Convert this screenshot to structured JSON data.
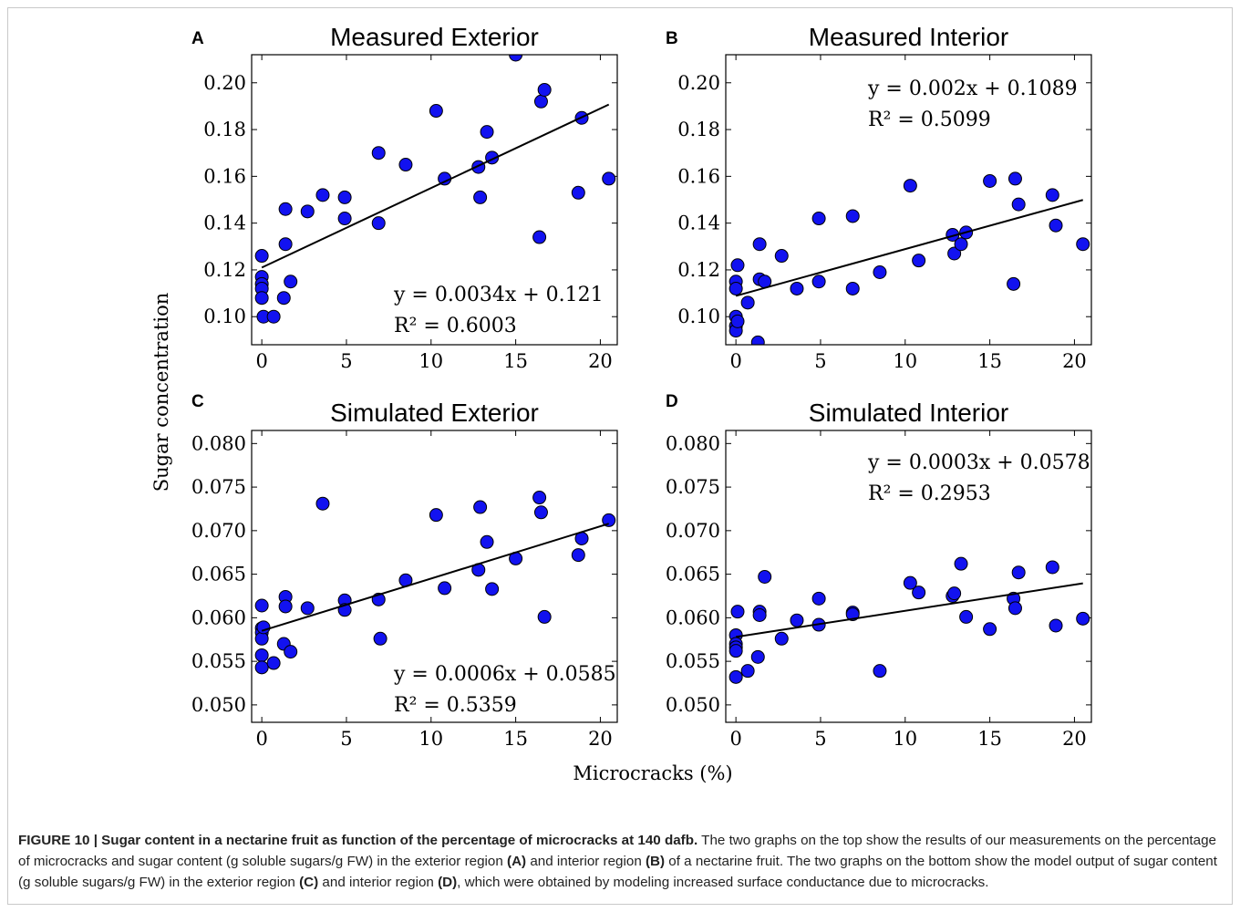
{
  "figure": {
    "ylabel": "Sugar concentration",
    "xlabel": "Microcracks (%)"
  },
  "caption": {
    "lead": "FIGURE 10 | Sugar content in a nectarine fruit as function of the percentage of microcracks at 140 dafb.",
    "t1": " The two graphs on the top show the results of our measurements on the percentage of microcracks and sugar content (g soluble sugars/g FW) in the exterior region ",
    "a": "(A)",
    "t2": " and interior region ",
    "b": "(B)",
    "t3": " of a nectarine fruit. The two graphs on the bottom show the model output of sugar content (g soluble sugars/g FW) in the exterior region ",
    "c": "(C)",
    "t4": " and interior region ",
    "d": "(D)",
    "t5": ", which were obtained by modeling increased surface conductance due to microcracks."
  },
  "colors": {
    "point_fill": "#1212f0",
    "point_stroke": "#000000",
    "line": "#000000"
  },
  "chart_data": [
    {
      "type": "scatter",
      "letter": "A",
      "title": "Measured Exterior",
      "xlim": [
        -0.6,
        21
      ],
      "ylim": [
        0.088,
        0.212
      ],
      "xticks": [
        0,
        5,
        10,
        15,
        20
      ],
      "yticks": [
        0.1,
        0.12,
        0.14,
        0.16,
        0.18,
        0.2
      ],
      "ytick_labels": [
        "0.10",
        "0.12",
        "0.14",
        "0.16",
        "0.18",
        "0.20"
      ],
      "equation": "y = 0.0034x + 0.121",
      "r2": "R² = 0.6003",
      "fit": {
        "slope": 0.0034,
        "intercept": 0.121,
        "x_range": [
          0,
          20.5
        ]
      },
      "points": [
        [
          0,
          0.126
        ],
        [
          0,
          0.117
        ],
        [
          0,
          0.114
        ],
        [
          0,
          0.112
        ],
        [
          0,
          0.108
        ],
        [
          0.1,
          0.1
        ],
        [
          0.7,
          0.1
        ],
        [
          1.3,
          0.108
        ],
        [
          1.4,
          0.146
        ],
        [
          1.4,
          0.131
        ],
        [
          1.7,
          0.115
        ],
        [
          2.7,
          0.145
        ],
        [
          3.6,
          0.152
        ],
        [
          4.9,
          0.151
        ],
        [
          4.9,
          0.142
        ],
        [
          6.9,
          0.17
        ],
        [
          6.9,
          0.14
        ],
        [
          8.5,
          0.165
        ],
        [
          10.3,
          0.188
        ],
        [
          10.8,
          0.159
        ],
        [
          12.8,
          0.164
        ],
        [
          12.9,
          0.151
        ],
        [
          13.3,
          0.179
        ],
        [
          13.6,
          0.168
        ],
        [
          15.0,
          0.212
        ],
        [
          16.4,
          0.134
        ],
        [
          16.5,
          0.192
        ],
        [
          16.7,
          0.197
        ],
        [
          18.7,
          0.153
        ],
        [
          18.9,
          0.185
        ],
        [
          20.5,
          0.159
        ]
      ]
    },
    {
      "type": "scatter",
      "letter": "B",
      "title": "Measured Interior",
      "xlim": [
        -0.6,
        21
      ],
      "ylim": [
        0.088,
        0.212
      ],
      "xticks": [
        0,
        5,
        10,
        15,
        20
      ],
      "yticks": [
        0.1,
        0.12,
        0.14,
        0.16,
        0.18,
        0.2
      ],
      "ytick_labels": [
        "0.10",
        "0.12",
        "0.14",
        "0.16",
        "0.18",
        "0.20"
      ],
      "equation": "y = 0.002x + 0.1089",
      "r2": "R² = 0.5099",
      "fit": {
        "slope": 0.002,
        "intercept": 0.1089,
        "x_range": [
          0,
          20.5
        ]
      },
      "points": [
        [
          0,
          0.115
        ],
        [
          0,
          0.112
        ],
        [
          0,
          0.1
        ],
        [
          0,
          0.096
        ],
        [
          0,
          0.094
        ],
        [
          0.1,
          0.122
        ],
        [
          0.1,
          0.098
        ],
        [
          0.7,
          0.106
        ],
        [
          1.3,
          0.089
        ],
        [
          1.4,
          0.131
        ],
        [
          1.4,
          0.116
        ],
        [
          1.7,
          0.115
        ],
        [
          2.7,
          0.126
        ],
        [
          3.6,
          0.112
        ],
        [
          4.9,
          0.115
        ],
        [
          4.9,
          0.142
        ],
        [
          6.9,
          0.143
        ],
        [
          6.9,
          0.112
        ],
        [
          8.5,
          0.119
        ],
        [
          10.3,
          0.156
        ],
        [
          10.8,
          0.124
        ],
        [
          12.8,
          0.135
        ],
        [
          12.9,
          0.127
        ],
        [
          13.3,
          0.131
        ],
        [
          13.6,
          0.136
        ],
        [
          15.0,
          0.158
        ],
        [
          16.4,
          0.114
        ],
        [
          16.5,
          0.159
        ],
        [
          16.7,
          0.148
        ],
        [
          18.7,
          0.152
        ],
        [
          18.9,
          0.139
        ],
        [
          20.5,
          0.131
        ]
      ]
    },
    {
      "type": "scatter",
      "letter": "C",
      "title": "Simulated Exterior",
      "xlim": [
        -0.6,
        21
      ],
      "ylim": [
        0.048,
        0.0815
      ],
      "xticks": [
        0,
        5,
        10,
        15,
        20
      ],
      "yticks": [
        0.05,
        0.055,
        0.06,
        0.065,
        0.07,
        0.075,
        0.08
      ],
      "ytick_labels": [
        "0.050",
        "0.055",
        "0.060",
        "0.065",
        "0.070",
        "0.075",
        "0.080"
      ],
      "equation": "y = 0.0006x + 0.0585",
      "r2": "R² = 0.5359",
      "fit": {
        "slope": 0.0006,
        "intercept": 0.0585,
        "x_range": [
          0,
          20.5
        ]
      },
      "points": [
        [
          0,
          0.0614
        ],
        [
          0,
          0.0588
        ],
        [
          0,
          0.0583
        ],
        [
          0,
          0.0576
        ],
        [
          0,
          0.0557
        ],
        [
          0,
          0.0543
        ],
        [
          0.1,
          0.0589
        ],
        [
          0.7,
          0.0548
        ],
        [
          1.3,
          0.057
        ],
        [
          1.4,
          0.0624
        ],
        [
          1.4,
          0.0613
        ],
        [
          1.7,
          0.0561
        ],
        [
          2.7,
          0.0611
        ],
        [
          3.6,
          0.0731
        ],
        [
          4.9,
          0.062
        ],
        [
          4.9,
          0.0609
        ],
        [
          6.9,
          0.0621
        ],
        [
          7.0,
          0.0576
        ],
        [
          8.5,
          0.0643
        ],
        [
          10.3,
          0.0718
        ],
        [
          10.8,
          0.0634
        ],
        [
          12.8,
          0.0655
        ],
        [
          12.9,
          0.0727
        ],
        [
          13.3,
          0.0687
        ],
        [
          13.6,
          0.0633
        ],
        [
          15.0,
          0.0668
        ],
        [
          16.4,
          0.0738
        ],
        [
          16.5,
          0.0721
        ],
        [
          16.7,
          0.0601
        ],
        [
          18.7,
          0.0672
        ],
        [
          18.9,
          0.0691
        ],
        [
          20.5,
          0.0712
        ]
      ]
    },
    {
      "type": "scatter",
      "letter": "D",
      "title": "Simulated Interior",
      "xlim": [
        -0.6,
        21
      ],
      "ylim": [
        0.048,
        0.0815
      ],
      "xticks": [
        0,
        5,
        10,
        15,
        20
      ],
      "yticks": [
        0.05,
        0.055,
        0.06,
        0.065,
        0.07,
        0.075,
        0.08
      ],
      "ytick_labels": [
        "0.050",
        "0.055",
        "0.060",
        "0.065",
        "0.070",
        "0.075",
        "0.080"
      ],
      "equation": "y = 0.0003x + 0.0578",
      "r2": "R² = 0.2953",
      "fit": {
        "slope": 0.0003,
        "intercept": 0.0578,
        "x_range": [
          0,
          20.5
        ]
      },
      "points": [
        [
          0,
          0.058
        ],
        [
          0,
          0.057
        ],
        [
          0,
          0.0566
        ],
        [
          0,
          0.0562
        ],
        [
          0,
          0.0532
        ],
        [
          0.1,
          0.0607
        ],
        [
          0.7,
          0.0539
        ],
        [
          1.3,
          0.0555
        ],
        [
          1.4,
          0.0607
        ],
        [
          1.4,
          0.0603
        ],
        [
          1.7,
          0.0647
        ],
        [
          2.7,
          0.0576
        ],
        [
          3.6,
          0.0597
        ],
        [
          4.9,
          0.0622
        ],
        [
          4.9,
          0.0592
        ],
        [
          6.9,
          0.0606
        ],
        [
          6.9,
          0.0604
        ],
        [
          8.5,
          0.0539
        ],
        [
          10.3,
          0.064
        ],
        [
          10.8,
          0.0629
        ],
        [
          12.8,
          0.0625
        ],
        [
          12.9,
          0.0628
        ],
        [
          13.3,
          0.0662
        ],
        [
          13.6,
          0.0601
        ],
        [
          15.0,
          0.0587
        ],
        [
          16.4,
          0.0622
        ],
        [
          16.5,
          0.0611
        ],
        [
          16.7,
          0.0652
        ],
        [
          18.7,
          0.0658
        ],
        [
          18.9,
          0.0591
        ],
        [
          20.5,
          0.0599
        ]
      ]
    }
  ]
}
